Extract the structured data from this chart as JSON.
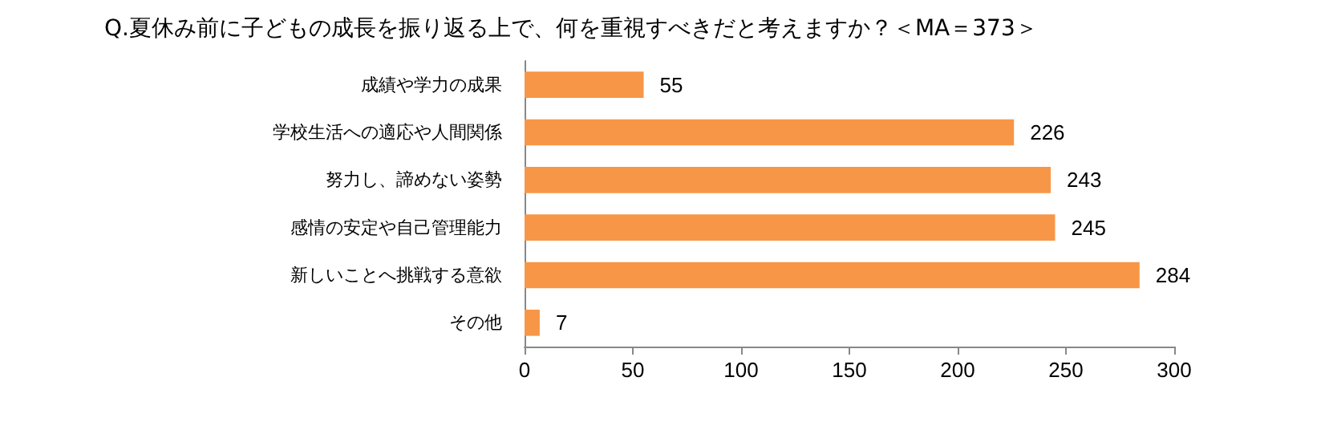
{
  "chart_data": {
    "type": "bar",
    "orientation": "horizontal",
    "title": "Q.夏休み前に子どもの成長を振り返る上で、何を重視すべきだと考えますか？＜MA＝373＞",
    "categories": [
      "成績や学力の成果",
      "学校生活への適応や人間関係",
      "努力し、諦めない姿勢",
      "感情の安定や自己管理能力",
      "新しいことへ挑戦する意欲",
      "その他"
    ],
    "values": [
      55,
      226,
      243,
      245,
      284,
      7
    ],
    "color": "#f79646",
    "data_labels": true,
    "grid": false,
    "xlim": [
      0,
      300
    ],
    "xticks": [
      0,
      50,
      100,
      150,
      200,
      250,
      300
    ]
  }
}
